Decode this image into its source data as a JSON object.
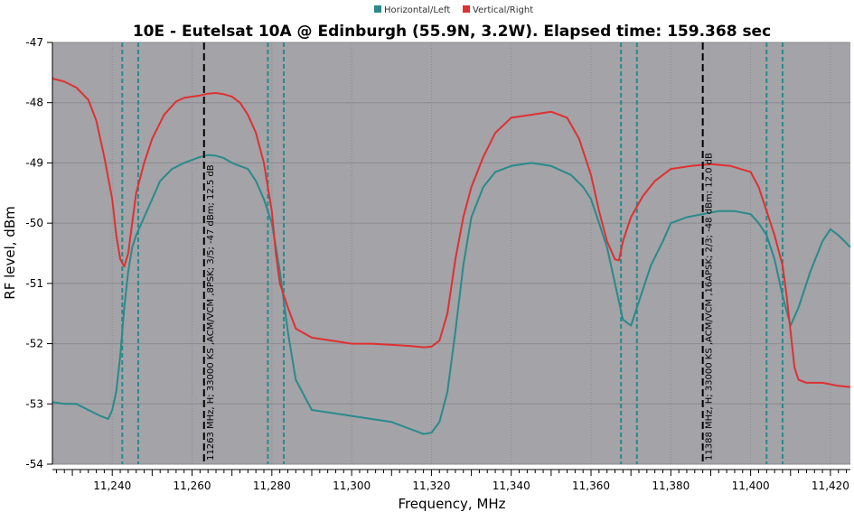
{
  "chart_data": {
    "type": "line",
    "title": "10E - Eutelsat 10A @ Edinburgh (55.9N, 3.2W). Elapsed time: 159.368 sec",
    "xlabel": "Frequency, MHz",
    "ylabel": "RF level, dBm",
    "xlim": [
      11225,
      11425
    ],
    "ylim": [
      -54,
      -47
    ],
    "xticks": [
      11240,
      11260,
      11280,
      11300,
      11320,
      11340,
      11360,
      11380,
      11400,
      11420
    ],
    "xtick_labels": [
      "11,240",
      "11,260",
      "11,280",
      "11,300",
      "11,320",
      "11,340",
      "11,360",
      "11,380",
      "11,400",
      "11,420"
    ],
    "yticks": [
      -54,
      -53,
      -52,
      -51,
      -50,
      -49,
      -48,
      -47
    ],
    "ytick_labels": [
      "-54",
      "-53",
      "-52",
      "-51",
      "-50",
      "-49",
      "-48",
      "-47"
    ],
    "grid": true,
    "legend_position": "top-center",
    "plot_background": "#a3a3a8",
    "series": [
      {
        "name": "Horizontal/Left",
        "color": "#2a8a8a",
        "x": [
          11225,
          11228,
          11231,
          11234,
          11237,
          11239,
          11240,
          11241,
          11242,
          11243,
          11244,
          11245,
          11246,
          11248,
          11250,
          11252,
          11255,
          11258,
          11260,
          11262,
          11264,
          11266,
          11268,
          11270,
          11272,
          11274,
          11276,
          11278,
          11280,
          11282,
          11284,
          11286,
          11290,
          11295,
          11300,
          11305,
          11310,
          11314,
          11318,
          11320,
          11322,
          11324,
          11326,
          11328,
          11330,
          11333,
          11336,
          11340,
          11345,
          11350,
          11355,
          11358,
          11360,
          11362,
          11364,
          11366,
          11368,
          11370,
          11372,
          11375,
          11378,
          11380,
          11384,
          11388,
          11392,
          11396,
          11400,
          11402,
          11404,
          11406,
          11408,
          11410,
          11412,
          11415,
          11418,
          11420,
          11422,
          11425
        ],
        "y": [
          -52.97,
          -53.0,
          -53.0,
          -53.1,
          -53.2,
          -53.25,
          -53.1,
          -52.8,
          -52.2,
          -51.4,
          -50.8,
          -50.4,
          -50.2,
          -49.9,
          -49.6,
          -49.3,
          -49.1,
          -49.0,
          -48.95,
          -48.9,
          -48.87,
          -48.88,
          -48.92,
          -49.0,
          -49.05,
          -49.1,
          -49.3,
          -49.6,
          -50.0,
          -50.8,
          -51.8,
          -52.6,
          -53.1,
          -53.15,
          -53.2,
          -53.25,
          -53.3,
          -53.4,
          -53.5,
          -53.48,
          -53.3,
          -52.8,
          -51.8,
          -50.7,
          -49.9,
          -49.4,
          -49.15,
          -49.05,
          -49.0,
          -49.05,
          -49.2,
          -49.4,
          -49.6,
          -50.0,
          -50.4,
          -51.0,
          -51.6,
          -51.7,
          -51.3,
          -50.7,
          -50.3,
          -50.0,
          -49.9,
          -49.85,
          -49.8,
          -49.8,
          -49.85,
          -50.0,
          -50.2,
          -50.6,
          -51.2,
          -51.7,
          -51.4,
          -50.8,
          -50.3,
          -50.1,
          -50.2,
          -50.4
        ]
      },
      {
        "name": "Vertical/Right",
        "color": "#e03030",
        "x": [
          11225,
          11228,
          11231,
          11234,
          11236,
          11238,
          11240,
          11241,
          11242,
          11243,
          11244,
          11245,
          11246,
          11248,
          11250,
          11253,
          11256,
          11258,
          11260,
          11262,
          11264,
          11266,
          11268,
          11270,
          11272,
          11274,
          11276,
          11278,
          11280,
          11281,
          11282,
          11284,
          11286,
          11290,
          11295,
          11300,
          11305,
          11310,
          11315,
          11318,
          11320,
          11322,
          11324,
          11326,
          11328,
          11330,
          11333,
          11336,
          11340,
          11345,
          11350,
          11354,
          11357,
          11360,
          11362,
          11364,
          11366,
          11367,
          11368,
          11370,
          11373,
          11376,
          11380,
          11385,
          11390,
          11395,
          11400,
          11402,
          11404,
          11406,
          11408,
          11409,
          11410,
          11411,
          11412,
          11414,
          11418,
          11422,
          11425
        ],
        "y": [
          -47.6,
          -47.65,
          -47.75,
          -47.95,
          -48.3,
          -48.9,
          -49.6,
          -50.2,
          -50.6,
          -50.72,
          -50.5,
          -50.0,
          -49.5,
          -49.0,
          -48.6,
          -48.2,
          -47.98,
          -47.92,
          -47.9,
          -47.88,
          -47.85,
          -47.84,
          -47.86,
          -47.9,
          -48.0,
          -48.2,
          -48.5,
          -49.0,
          -49.8,
          -50.5,
          -51.0,
          -51.4,
          -51.75,
          -51.9,
          -51.95,
          -52.0,
          -52.0,
          -52.02,
          -52.04,
          -52.06,
          -52.05,
          -51.95,
          -51.5,
          -50.6,
          -49.9,
          -49.4,
          -48.9,
          -48.5,
          -48.25,
          -48.2,
          -48.15,
          -48.25,
          -48.6,
          -49.2,
          -49.8,
          -50.3,
          -50.6,
          -50.62,
          -50.3,
          -49.9,
          -49.55,
          -49.3,
          -49.1,
          -49.05,
          -49.02,
          -49.05,
          -49.15,
          -49.4,
          -49.8,
          -50.2,
          -50.7,
          -51.2,
          -51.8,
          -52.4,
          -52.6,
          -52.65,
          -52.65,
          -52.7,
          -52.72
        ]
      }
    ],
    "annotations": [
      {
        "x": 11263,
        "color": "#000000",
        "label": "11263 MHz, H; 33000 KS ,ACM/VCM ,8PSK; 3/5; -47 dBm; 12.5 dB"
      },
      {
        "x": 11388,
        "color": "#000000",
        "label": "11388 MHz, H; 33000 KS ,ACM/VCM ,16APSK; 2/3; -48 dBm; 12.0 dB"
      }
    ],
    "markers": [
      {
        "x": 11242.5,
        "color": "#2a8a8a"
      },
      {
        "x": 11246.5,
        "color": "#2a8a8a"
      },
      {
        "x": 11279,
        "color": "#2a8a8a"
      },
      {
        "x": 11283,
        "color": "#2a8a8a"
      },
      {
        "x": 11367.5,
        "color": "#2a8a8a"
      },
      {
        "x": 11371.5,
        "color": "#2a8a8a"
      },
      {
        "x": 11404,
        "color": "#2a8a8a"
      },
      {
        "x": 11408,
        "color": "#2a8a8a"
      }
    ]
  }
}
